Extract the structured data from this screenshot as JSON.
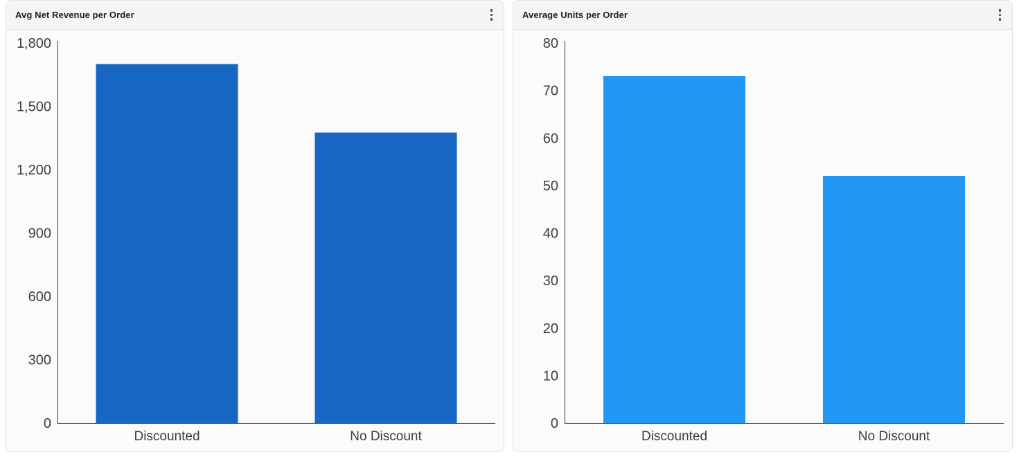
{
  "cards": [
    {
      "title": "Avg Net Revenue per Order",
      "menu_icon": "kebab-menu-icon"
    },
    {
      "title": "Average Units per Order",
      "menu_icon": "kebab-menu-icon"
    }
  ],
  "chart_data": [
    {
      "type": "bar",
      "title": "Avg Net Revenue per Order",
      "categories": [
        "Discounted",
        "No Discount"
      ],
      "values": [
        1700,
        1375
      ],
      "ylim": [
        0,
        1800
      ],
      "ytick_values": [
        0,
        300,
        600,
        900,
        1200,
        1500,
        1800
      ],
      "ytick_labels": [
        "0",
        "300",
        "600",
        "900",
        "1,200",
        "1,500",
        "1,800"
      ],
      "bar_color": "#1766c3",
      "axis_color": "#333333",
      "label_color": "#3d3d3d",
      "grid": false,
      "legend": "none"
    },
    {
      "type": "bar",
      "title": "Average Units per Order",
      "categories": [
        "Discounted",
        "No Discount"
      ],
      "values": [
        73,
        52
      ],
      "ylim": [
        0,
        80
      ],
      "ytick_values": [
        0,
        10,
        20,
        30,
        40,
        50,
        60,
        70,
        80
      ],
      "ytick_labels": [
        "0",
        "10",
        "20",
        "30",
        "40",
        "50",
        "60",
        "70",
        "80"
      ],
      "bar_color": "#2196f3",
      "axis_color": "#333333",
      "label_color": "#3d3d3d",
      "grid": false,
      "legend": "none"
    }
  ]
}
